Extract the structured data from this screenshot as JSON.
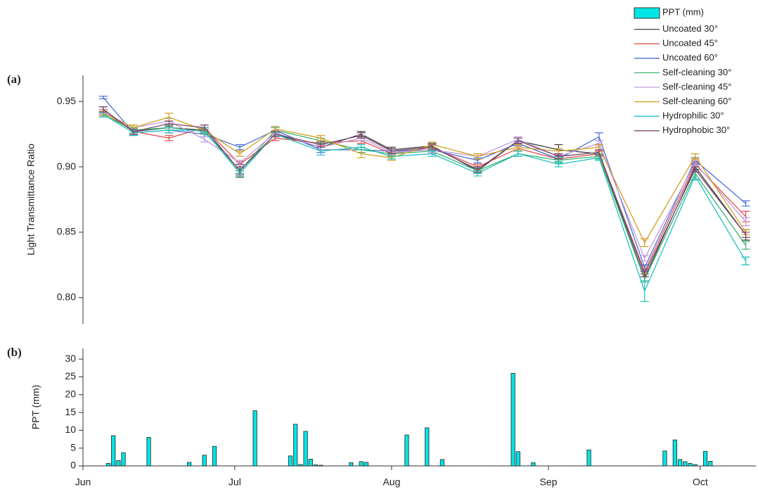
{
  "chart_data": [
    {
      "type": "line",
      "panel_label": "(a)",
      "ylabel": "Light Transmittance Ratio",
      "x": [
        4,
        10,
        17,
        24,
        31,
        38,
        47,
        55,
        61,
        69,
        78,
        86,
        94,
        102,
        111,
        121,
        131
      ],
      "xlim": [
        0,
        133
      ],
      "ylim": [
        0.78,
        0.97
      ],
      "yticks": [
        {
          "value": 0.8,
          "label": "0.80"
        },
        {
          "value": 0.85,
          "label": "0.85"
        },
        {
          "value": 0.9,
          "label": "0.90"
        },
        {
          "value": 0.95,
          "label": "0.95"
        }
      ],
      "legend": "upper right",
      "series": [
        {
          "name": "Uncoated 30°",
          "color": "#404040",
          "values": [
            0.944,
            0.927,
            0.93,
            0.928,
            0.897,
            0.925,
            0.915,
            0.925,
            0.913,
            0.916,
            0.897,
            0.92,
            0.913,
            0.91,
            0.815,
            0.9,
            0.848
          ],
          "errors": [
            0.002,
            0.002,
            0.002,
            0.002,
            0.005,
            0.002,
            0.002,
            0.002,
            0.002,
            0.002,
            0.002,
            0.002,
            0.004,
            0.002,
            0.003,
            0.002,
            0.004
          ]
        },
        {
          "name": "Uncoated 45°",
          "color": "#e05050",
          "values": [
            0.942,
            0.927,
            0.922,
            0.93,
            0.902,
            0.922,
            0.918,
            0.92,
            0.91,
            0.915,
            0.9,
            0.914,
            0.906,
            0.91,
            0.82,
            0.902,
            0.862
          ],
          "errors": [
            0.002,
            0.002,
            0.002,
            0.002,
            0.002,
            0.002,
            0.002,
            0.002,
            0.002,
            0.002,
            0.002,
            0.002,
            0.002,
            0.002,
            0.002,
            0.002,
            0.004
          ]
        },
        {
          "name": "Uncoated 60°",
          "color": "#4a6fd6",
          "values": [
            0.953,
            0.926,
            0.928,
            0.925,
            0.915,
            0.928,
            0.913,
            0.913,
            0.912,
            0.913,
            0.905,
            0.918,
            0.906,
            0.923,
            0.823,
            0.905,
            0.872
          ],
          "errors": [
            0.001,
            0.002,
            0.002,
            0.002,
            0.002,
            0.002,
            0.002,
            0.002,
            0.002,
            0.002,
            0.002,
            0.002,
            0.002,
            0.003,
            0.002,
            0.002,
            0.002
          ]
        },
        {
          "name": "Self-cleaning 30°",
          "color": "#3cb371",
          "values": [
            0.94,
            0.928,
            0.93,
            0.927,
            0.897,
            0.928,
            0.92,
            0.913,
            0.91,
            0.912,
            0.897,
            0.91,
            0.905,
            0.908,
            0.814,
            0.895,
            0.84
          ],
          "errors": [
            0.001,
            0.002,
            0.002,
            0.002,
            0.002,
            0.002,
            0.002,
            0.002,
            0.002,
            0.002,
            0.002,
            0.002,
            0.002,
            0.002,
            0.002,
            0.005,
            0.003
          ]
        },
        {
          "name": "Self-cleaning 45°",
          "color": "#c39be0",
          "values": [
            0.942,
            0.93,
            0.935,
            0.921,
            0.903,
            0.926,
            0.915,
            0.922,
            0.911,
            0.913,
            0.908,
            0.921,
            0.908,
            0.918,
            0.83,
            0.903,
            0.858
          ],
          "errors": [
            0.002,
            0.002,
            0.002,
            0.002,
            0.002,
            0.002,
            0.002,
            0.002,
            0.002,
            0.002,
            0.002,
            0.002,
            0.002,
            0.002,
            0.002,
            0.002,
            0.003
          ]
        },
        {
          "name": "Self-cleaning 60°",
          "color": "#d4a020",
          "values": [
            0.941,
            0.93,
            0.938,
            0.928,
            0.91,
            0.929,
            0.922,
            0.91,
            0.907,
            0.917,
            0.908,
            0.915,
            0.912,
            0.915,
            0.842,
            0.908,
            0.85
          ],
          "errors": [
            0.002,
            0.002,
            0.003,
            0.002,
            0.002,
            0.002,
            0.002,
            0.003,
            0.002,
            0.002,
            0.002,
            0.002,
            0.002,
            0.002,
            0.003,
            0.002,
            0.002
          ]
        },
        {
          "name": "Hydrophilic 30°",
          "color": "#20c0c0",
          "values": [
            0.94,
            0.926,
            0.928,
            0.928,
            0.895,
            0.925,
            0.912,
            0.915,
            0.908,
            0.91,
            0.895,
            0.91,
            0.902,
            0.907,
            0.805,
            0.893,
            0.828
          ],
          "errors": [
            0.002,
            0.002,
            0.002,
            0.002,
            0.002,
            0.002,
            0.003,
            0.002,
            0.002,
            0.002,
            0.002,
            0.002,
            0.002,
            0.002,
            0.008,
            0.003,
            0.003
          ]
        },
        {
          "name": "Hydrophobic 30°",
          "color": "#7b4a6b",
          "values": [
            0.944,
            0.927,
            0.933,
            0.93,
            0.897,
            0.925,
            0.917,
            0.924,
            0.912,
            0.915,
            0.898,
            0.92,
            0.908,
            0.911,
            0.818,
            0.898,
            0.848
          ],
          "errors": [
            0.002,
            0.002,
            0.002,
            0.002,
            0.003,
            0.002,
            0.002,
            0.002,
            0.002,
            0.002,
            0.002,
            0.002,
            0.002,
            0.002,
            0.002,
            0.002,
            0.002
          ]
        }
      ]
    },
    {
      "type": "bar",
      "panel_label": "(b)",
      "ylabel": "PPT (mm)",
      "x": [
        5,
        6,
        7,
        8,
        13,
        21,
        24,
        26,
        34,
        41,
        42,
        43,
        44,
        45,
        46,
        47,
        53,
        55,
        56,
        64,
        68,
        71,
        85,
        86,
        89,
        100,
        115,
        117,
        118,
        119,
        120,
        121,
        123,
        124
      ],
      "xlim": [
        0,
        133
      ],
      "xticks": [
        {
          "value": 0,
          "label": "Jun"
        },
        {
          "value": 30,
          "label": "Jul"
        },
        {
          "value": 61,
          "label": "Aug"
        },
        {
          "value": 92,
          "label": "Sep"
        },
        {
          "value": 122,
          "label": "Oct"
        }
      ],
      "ylim": [
        0,
        33
      ],
      "yticks": [
        0,
        5,
        10,
        15,
        20,
        25,
        30
      ],
      "series": [
        {
          "name": "PPT (mm)",
          "color": "#00e5e5",
          "values": [
            0.7,
            8.5,
            1.5,
            3.7,
            8,
            1,
            3,
            5.5,
            15.5,
            2.8,
            11.7,
            0.4,
            9.7,
            1.9,
            0.3,
            0.2,
            0.9,
            1.2,
            1,
            8.7,
            10.7,
            1.8,
            26,
            4,
            0.9,
            4.5,
            4.2,
            7.3,
            1.8,
            1.2,
            0.7,
            0.4,
            4.1,
            1.3
          ]
        }
      ]
    }
  ]
}
